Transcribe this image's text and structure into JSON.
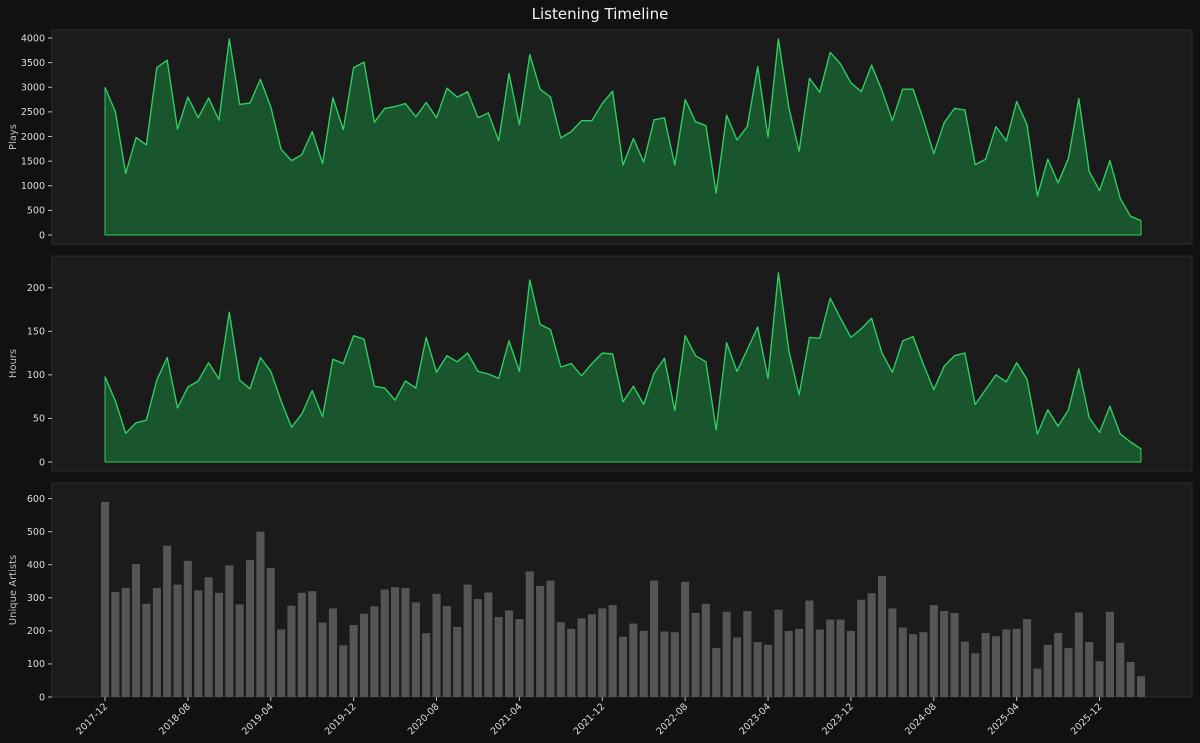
{
  "title": "Listening Timeline",
  "chart_data": [
    {
      "type": "area",
      "ylabel": "Plays",
      "ylim": [
        0,
        4000
      ],
      "yticks": [
        0,
        500,
        1000,
        1500,
        2000,
        2500,
        3000,
        3500,
        4000
      ],
      "line_color": "#2ecc61",
      "fill_color": "#1a5c30",
      "x_start": "2017-12",
      "values": [
        3000,
        2500,
        1250,
        1980,
        1830,
        3400,
        3550,
        2150,
        2800,
        2380,
        2780,
        2330,
        3980,
        2650,
        2680,
        3160,
        2600,
        1740,
        1510,
        1630,
        2100,
        1450,
        2790,
        2140,
        3400,
        3510,
        2290,
        2570,
        2610,
        2670,
        2400,
        2690,
        2380,
        2980,
        2800,
        2910,
        2380,
        2480,
        1910,
        3280,
        2240,
        3660,
        2960,
        2800,
        1970,
        2100,
        2320,
        2320,
        2670,
        2920,
        1420,
        1960,
        1480,
        2340,
        2380,
        1420,
        2750,
        2300,
        2220,
        850,
        2430,
        1930,
        2200,
        3420,
        1990,
        3980,
        2590,
        1700,
        3180,
        2900,
        3710,
        3470,
        3090,
        2910,
        3450,
        2930,
        2320,
        2960,
        2960,
        2340,
        1650,
        2280,
        2570,
        2540,
        1430,
        1540,
        2200,
        1910,
        2710,
        2240,
        790,
        1540,
        1060,
        1560,
        2770,
        1290,
        900,
        1510,
        740,
        380,
        290
      ]
    },
    {
      "type": "area",
      "ylabel": "Hours",
      "ylim": [
        0,
        225
      ],
      "yticks": [
        0,
        50,
        100,
        150,
        200
      ],
      "line_color": "#2ecc61",
      "fill_color": "#1a5c30",
      "x_start": "2017-12",
      "values": [
        98,
        70,
        33,
        45,
        48,
        94,
        120,
        62,
        86,
        93,
        114,
        95,
        172,
        94,
        84,
        120,
        104,
        70,
        40,
        55,
        82,
        52,
        118,
        113,
        145,
        141,
        87,
        85,
        71,
        93,
        85,
        143,
        103,
        122,
        115,
        125,
        104,
        101,
        96,
        139,
        104,
        209,
        158,
        152,
        109,
        113,
        99,
        113,
        125,
        124,
        69,
        87,
        66,
        102,
        119,
        59,
        145,
        122,
        115,
        37,
        137,
        104,
        129,
        155,
        96,
        217,
        128,
        77,
        143,
        142,
        188,
        165,
        143,
        153,
        165,
        125,
        103,
        139,
        144,
        112,
        83,
        110,
        122,
        125,
        66,
        83,
        100,
        92,
        114,
        95,
        32,
        60,
        41,
        60,
        107,
        51,
        34,
        64,
        32,
        23,
        15
      ]
    },
    {
      "type": "bar",
      "ylabel": "Unique Artists",
      "ylim": [
        0,
        620
      ],
      "yticks": [
        0,
        100,
        200,
        300,
        400,
        500,
        600
      ],
      "bar_color": "#555555",
      "x_start": "2017-12",
      "x_tick_labels": [
        "2017-12",
        "2018-08",
        "2019-04",
        "2019-12",
        "2020-08",
        "2021-04",
        "2021-12",
        "2022-08",
        "2023-04",
        "2023-12",
        "2024-08",
        "2025-04",
        "2025-12"
      ],
      "values": [
        590,
        318,
        330,
        402,
        282,
        330,
        458,
        340,
        412,
        322,
        362,
        315,
        398,
        280,
        414,
        500,
        390,
        204,
        276,
        315,
        320,
        225,
        268,
        156,
        218,
        252,
        274,
        325,
        332,
        330,
        286,
        193,
        312,
        275,
        212,
        340,
        296,
        316,
        242,
        262,
        236,
        380,
        336,
        352,
        226,
        206,
        238,
        250,
        268,
        278,
        182,
        222,
        200,
        352,
        198,
        196,
        348,
        254,
        282,
        148,
        258,
        180,
        260,
        166,
        158,
        264,
        200,
        206,
        292,
        204,
        234,
        234,
        200,
        294,
        314,
        366,
        268,
        210,
        190,
        196,
        278,
        260,
        254,
        168,
        132,
        194,
        184,
        204,
        206,
        236,
        86,
        158,
        194,
        148,
        256,
        166,
        108,
        258,
        164,
        106,
        63
      ]
    }
  ]
}
